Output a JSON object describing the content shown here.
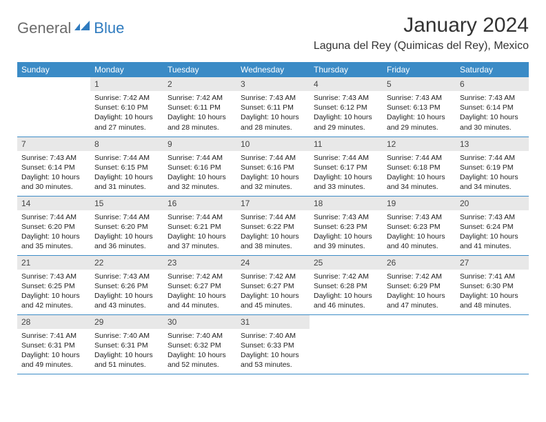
{
  "brand": {
    "general": "General",
    "blue": "Blue"
  },
  "title": "January 2024",
  "location": "Laguna del Rey (Quimicas del Rey), Mexico",
  "colors": {
    "header_bg": "#3b8bc6",
    "header_text": "#ffffff",
    "daynum_bg": "#e8e8e8",
    "row_border": "#3b8bc6",
    "logo_gray": "#6b6b6b",
    "logo_blue": "#2f7bbf",
    "body_text": "#222222",
    "page_bg": "#ffffff"
  },
  "typography": {
    "title_fontsize": 30,
    "location_fontsize": 16,
    "dayheader_fontsize": 12,
    "daynum_fontsize": 12,
    "daytext_fontsize": 10.5,
    "font_family": "Arial"
  },
  "calendar": {
    "type": "table",
    "day_headers": [
      "Sunday",
      "Monday",
      "Tuesday",
      "Wednesday",
      "Thursday",
      "Friday",
      "Saturday"
    ],
    "weeks": [
      [
        null,
        {
          "n": "1",
          "sunrise": "7:42 AM",
          "sunset": "6:10 PM",
          "daylight": "10 hours and 27 minutes."
        },
        {
          "n": "2",
          "sunrise": "7:42 AM",
          "sunset": "6:11 PM",
          "daylight": "10 hours and 28 minutes."
        },
        {
          "n": "3",
          "sunrise": "7:43 AM",
          "sunset": "6:11 PM",
          "daylight": "10 hours and 28 minutes."
        },
        {
          "n": "4",
          "sunrise": "7:43 AM",
          "sunset": "6:12 PM",
          "daylight": "10 hours and 29 minutes."
        },
        {
          "n": "5",
          "sunrise": "7:43 AM",
          "sunset": "6:13 PM",
          "daylight": "10 hours and 29 minutes."
        },
        {
          "n": "6",
          "sunrise": "7:43 AM",
          "sunset": "6:14 PM",
          "daylight": "10 hours and 30 minutes."
        }
      ],
      [
        {
          "n": "7",
          "sunrise": "7:43 AM",
          "sunset": "6:14 PM",
          "daylight": "10 hours and 30 minutes."
        },
        {
          "n": "8",
          "sunrise": "7:44 AM",
          "sunset": "6:15 PM",
          "daylight": "10 hours and 31 minutes."
        },
        {
          "n": "9",
          "sunrise": "7:44 AM",
          "sunset": "6:16 PM",
          "daylight": "10 hours and 32 minutes."
        },
        {
          "n": "10",
          "sunrise": "7:44 AM",
          "sunset": "6:16 PM",
          "daylight": "10 hours and 32 minutes."
        },
        {
          "n": "11",
          "sunrise": "7:44 AM",
          "sunset": "6:17 PM",
          "daylight": "10 hours and 33 minutes."
        },
        {
          "n": "12",
          "sunrise": "7:44 AM",
          "sunset": "6:18 PM",
          "daylight": "10 hours and 34 minutes."
        },
        {
          "n": "13",
          "sunrise": "7:44 AM",
          "sunset": "6:19 PM",
          "daylight": "10 hours and 34 minutes."
        }
      ],
      [
        {
          "n": "14",
          "sunrise": "7:44 AM",
          "sunset": "6:20 PM",
          "daylight": "10 hours and 35 minutes."
        },
        {
          "n": "15",
          "sunrise": "7:44 AM",
          "sunset": "6:20 PM",
          "daylight": "10 hours and 36 minutes."
        },
        {
          "n": "16",
          "sunrise": "7:44 AM",
          "sunset": "6:21 PM",
          "daylight": "10 hours and 37 minutes."
        },
        {
          "n": "17",
          "sunrise": "7:44 AM",
          "sunset": "6:22 PM",
          "daylight": "10 hours and 38 minutes."
        },
        {
          "n": "18",
          "sunrise": "7:43 AM",
          "sunset": "6:23 PM",
          "daylight": "10 hours and 39 minutes."
        },
        {
          "n": "19",
          "sunrise": "7:43 AM",
          "sunset": "6:23 PM",
          "daylight": "10 hours and 40 minutes."
        },
        {
          "n": "20",
          "sunrise": "7:43 AM",
          "sunset": "6:24 PM",
          "daylight": "10 hours and 41 minutes."
        }
      ],
      [
        {
          "n": "21",
          "sunrise": "7:43 AM",
          "sunset": "6:25 PM",
          "daylight": "10 hours and 42 minutes."
        },
        {
          "n": "22",
          "sunrise": "7:43 AM",
          "sunset": "6:26 PM",
          "daylight": "10 hours and 43 minutes."
        },
        {
          "n": "23",
          "sunrise": "7:42 AM",
          "sunset": "6:27 PM",
          "daylight": "10 hours and 44 minutes."
        },
        {
          "n": "24",
          "sunrise": "7:42 AM",
          "sunset": "6:27 PM",
          "daylight": "10 hours and 45 minutes."
        },
        {
          "n": "25",
          "sunrise": "7:42 AM",
          "sunset": "6:28 PM",
          "daylight": "10 hours and 46 minutes."
        },
        {
          "n": "26",
          "sunrise": "7:42 AM",
          "sunset": "6:29 PM",
          "daylight": "10 hours and 47 minutes."
        },
        {
          "n": "27",
          "sunrise": "7:41 AM",
          "sunset": "6:30 PM",
          "daylight": "10 hours and 48 minutes."
        }
      ],
      [
        {
          "n": "28",
          "sunrise": "7:41 AM",
          "sunset": "6:31 PM",
          "daylight": "10 hours and 49 minutes."
        },
        {
          "n": "29",
          "sunrise": "7:40 AM",
          "sunset": "6:31 PM",
          "daylight": "10 hours and 51 minutes."
        },
        {
          "n": "30",
          "sunrise": "7:40 AM",
          "sunset": "6:32 PM",
          "daylight": "10 hours and 52 minutes."
        },
        {
          "n": "31",
          "sunrise": "7:40 AM",
          "sunset": "6:33 PM",
          "daylight": "10 hours and 53 minutes."
        },
        null,
        null,
        null
      ]
    ]
  }
}
